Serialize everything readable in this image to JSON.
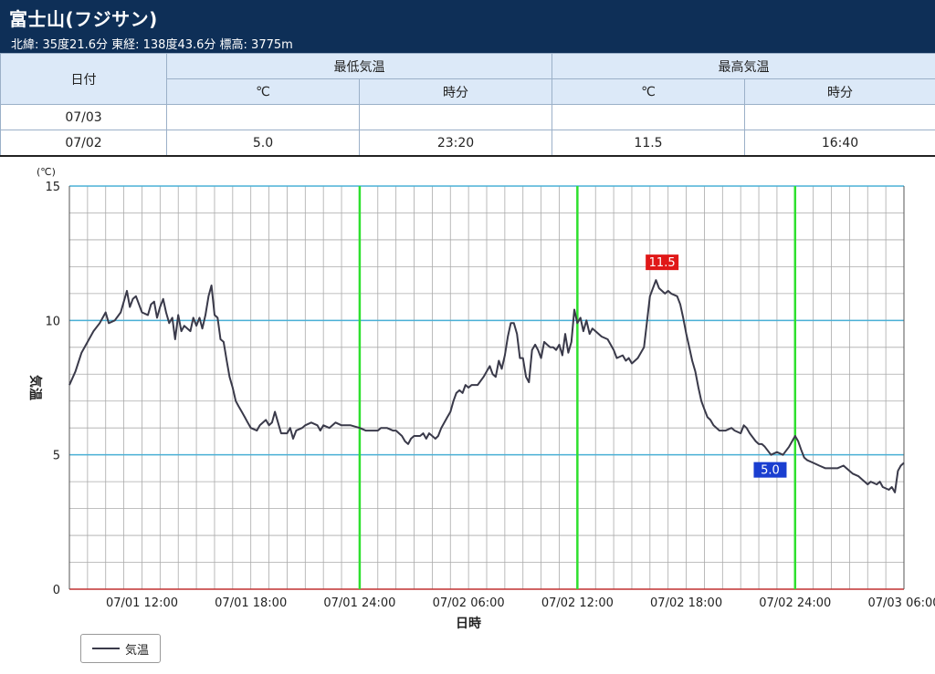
{
  "header": {
    "title": "富士山(フジサン)",
    "subtitle": "北緯: 35度21.6分 東経: 138度43.6分 標高: 3775m"
  },
  "table": {
    "date_header": "日付",
    "min_header": "最低気温",
    "max_header": "最高気温",
    "unit_c": "℃",
    "unit_time": "時分",
    "rows": [
      {
        "date": "07/03",
        "min_c": "",
        "min_time": "",
        "max_c": "",
        "max_time": ""
      },
      {
        "date": "07/02",
        "min_c": "5.0",
        "min_time": "23:20",
        "max_c": "11.5",
        "max_time": "16:40"
      }
    ]
  },
  "legend": {
    "label": "気温"
  },
  "chart_data": {
    "type": "line",
    "xlabel": "日時",
    "ylabel": "気温",
    "yunit": "(℃)",
    "ylim": [
      0,
      15
    ],
    "yticks": [
      0,
      5,
      10,
      15
    ],
    "xrange_hours": [
      8,
      54
    ],
    "xticks": [
      {
        "h": 12,
        "label": "07/01 12:00"
      },
      {
        "h": 18,
        "label": "07/01 18:00"
      },
      {
        "h": 24,
        "label": "07/01 24:00"
      },
      {
        "h": 30,
        "label": "07/02 06:00"
      },
      {
        "h": 36,
        "label": "07/02 12:00"
      },
      {
        "h": 42,
        "label": "07/02 18:00"
      },
      {
        "h": 48,
        "label": "07/02 24:00"
      },
      {
        "h": 54,
        "label": "07/03 06:00"
      }
    ],
    "grid": true,
    "colors": {
      "line": "#3a3a4a",
      "day_line": "#2ee02e",
      "major_grid": "#4ab0d6",
      "minor_grid": "#aaaaaa",
      "zero_line": "#c03030",
      "max_badge": "#e01818",
      "min_badge": "#1a3ed0"
    },
    "annotations": [
      {
        "label": "11.5",
        "kind": "max",
        "h": 40.67,
        "value": 11.5
      },
      {
        "label": "5.0",
        "kind": "min",
        "h": 47.33,
        "value": 5.0
      }
    ],
    "series": [
      {
        "name": "気温",
        "points": [
          [
            8.0,
            7.6
          ],
          [
            8.33,
            8.1
          ],
          [
            8.67,
            8.8
          ],
          [
            9.0,
            9.2
          ],
          [
            9.33,
            9.6
          ],
          [
            9.67,
            9.9
          ],
          [
            10.0,
            10.3
          ],
          [
            10.17,
            9.9
          ],
          [
            10.5,
            10.0
          ],
          [
            10.83,
            10.3
          ],
          [
            11.0,
            10.7
          ],
          [
            11.17,
            11.1
          ],
          [
            11.33,
            10.5
          ],
          [
            11.5,
            10.8
          ],
          [
            11.67,
            10.9
          ],
          [
            12.0,
            10.3
          ],
          [
            12.33,
            10.2
          ],
          [
            12.5,
            10.6
          ],
          [
            12.67,
            10.7
          ],
          [
            12.83,
            10.1
          ],
          [
            13.0,
            10.5
          ],
          [
            13.17,
            10.8
          ],
          [
            13.33,
            10.3
          ],
          [
            13.5,
            9.9
          ],
          [
            13.67,
            10.1
          ],
          [
            13.83,
            9.3
          ],
          [
            14.0,
            10.2
          ],
          [
            14.17,
            9.6
          ],
          [
            14.33,
            9.8
          ],
          [
            14.5,
            9.7
          ],
          [
            14.67,
            9.6
          ],
          [
            14.83,
            10.1
          ],
          [
            15.0,
            9.8
          ],
          [
            15.17,
            10.1
          ],
          [
            15.33,
            9.7
          ],
          [
            15.5,
            10.2
          ],
          [
            15.67,
            10.9
          ],
          [
            15.83,
            11.3
          ],
          [
            16.0,
            10.2
          ],
          [
            16.17,
            10.1
          ],
          [
            16.33,
            9.3
          ],
          [
            16.5,
            9.2
          ],
          [
            16.67,
            8.5
          ],
          [
            16.83,
            7.9
          ],
          [
            17.0,
            7.5
          ],
          [
            17.17,
            7.0
          ],
          [
            17.33,
            6.8
          ],
          [
            17.5,
            6.6
          ],
          [
            17.67,
            6.4
          ],
          [
            17.83,
            6.2
          ],
          [
            18.0,
            6.0
          ],
          [
            18.33,
            5.9
          ],
          [
            18.5,
            6.1
          ],
          [
            18.83,
            6.3
          ],
          [
            19.0,
            6.1
          ],
          [
            19.17,
            6.2
          ],
          [
            19.33,
            6.6
          ],
          [
            19.5,
            6.2
          ],
          [
            19.67,
            5.8
          ],
          [
            20.0,
            5.8
          ],
          [
            20.17,
            6.0
          ],
          [
            20.33,
            5.6
          ],
          [
            20.5,
            5.9
          ],
          [
            20.83,
            6.0
          ],
          [
            21.0,
            6.1
          ],
          [
            21.33,
            6.2
          ],
          [
            21.67,
            6.1
          ],
          [
            21.83,
            5.9
          ],
          [
            22.0,
            6.1
          ],
          [
            22.33,
            6.0
          ],
          [
            22.67,
            6.2
          ],
          [
            23.0,
            6.1
          ],
          [
            23.5,
            6.1
          ],
          [
            24.0,
            6.0
          ],
          [
            24.33,
            5.9
          ],
          [
            24.67,
            5.9
          ],
          [
            25.0,
            5.9
          ],
          [
            25.17,
            6.0
          ],
          [
            25.5,
            6.0
          ],
          [
            25.83,
            5.9
          ],
          [
            26.0,
            5.9
          ],
          [
            26.33,
            5.7
          ],
          [
            26.5,
            5.5
          ],
          [
            26.67,
            5.4
          ],
          [
            26.83,
            5.6
          ],
          [
            27.0,
            5.7
          ],
          [
            27.33,
            5.7
          ],
          [
            27.5,
            5.8
          ],
          [
            27.67,
            5.6
          ],
          [
            27.83,
            5.8
          ],
          [
            28.0,
            5.7
          ],
          [
            28.17,
            5.6
          ],
          [
            28.33,
            5.7
          ],
          [
            28.5,
            6.0
          ],
          [
            28.83,
            6.4
          ],
          [
            29.0,
            6.6
          ],
          [
            29.17,
            7.0
          ],
          [
            29.33,
            7.3
          ],
          [
            29.5,
            7.4
          ],
          [
            29.67,
            7.3
          ],
          [
            29.83,
            7.6
          ],
          [
            30.0,
            7.5
          ],
          [
            30.17,
            7.6
          ],
          [
            30.5,
            7.6
          ],
          [
            30.83,
            7.9
          ],
          [
            31.0,
            8.1
          ],
          [
            31.17,
            8.3
          ],
          [
            31.33,
            8.0
          ],
          [
            31.5,
            7.9
          ],
          [
            31.67,
            8.5
          ],
          [
            31.83,
            8.2
          ],
          [
            32.0,
            8.7
          ],
          [
            32.17,
            9.4
          ],
          [
            32.33,
            9.9
          ],
          [
            32.5,
            9.9
          ],
          [
            32.67,
            9.5
          ],
          [
            32.83,
            8.6
          ],
          [
            33.0,
            8.6
          ],
          [
            33.17,
            7.9
          ],
          [
            33.33,
            7.7
          ],
          [
            33.5,
            8.9
          ],
          [
            33.67,
            9.1
          ],
          [
            33.83,
            8.9
          ],
          [
            34.0,
            8.6
          ],
          [
            34.17,
            9.2
          ],
          [
            34.33,
            9.1
          ],
          [
            34.5,
            9.0
          ],
          [
            34.67,
            9.0
          ],
          [
            34.83,
            8.9
          ],
          [
            35.0,
            9.1
          ],
          [
            35.17,
            8.7
          ],
          [
            35.33,
            9.5
          ],
          [
            35.5,
            8.8
          ],
          [
            35.67,
            9.2
          ],
          [
            35.83,
            10.4
          ],
          [
            36.0,
            9.9
          ],
          [
            36.17,
            10.1
          ],
          [
            36.33,
            9.6
          ],
          [
            36.5,
            10.0
          ],
          [
            36.67,
            9.5
          ],
          [
            36.83,
            9.7
          ],
          [
            37.0,
            9.6
          ],
          [
            37.33,
            9.4
          ],
          [
            37.67,
            9.3
          ],
          [
            38.0,
            8.9
          ],
          [
            38.17,
            8.6
          ],
          [
            38.5,
            8.7
          ],
          [
            38.67,
            8.5
          ],
          [
            38.83,
            8.6
          ],
          [
            39.0,
            8.4
          ],
          [
            39.33,
            8.6
          ],
          [
            39.67,
            9.0
          ],
          [
            39.83,
            9.9
          ],
          [
            40.0,
            10.9
          ],
          [
            40.33,
            11.5
          ],
          [
            40.5,
            11.2
          ],
          [
            40.83,
            11.0
          ],
          [
            41.0,
            11.1
          ],
          [
            41.17,
            11.0
          ],
          [
            41.5,
            10.9
          ],
          [
            41.67,
            10.6
          ],
          [
            41.83,
            10.1
          ],
          [
            42.0,
            9.5
          ],
          [
            42.17,
            9.0
          ],
          [
            42.33,
            8.5
          ],
          [
            42.5,
            8.1
          ],
          [
            42.67,
            7.5
          ],
          [
            42.83,
            7.0
          ],
          [
            43.0,
            6.7
          ],
          [
            43.17,
            6.4
          ],
          [
            43.33,
            6.3
          ],
          [
            43.5,
            6.1
          ],
          [
            43.67,
            6.0
          ],
          [
            43.83,
            5.9
          ],
          [
            44.17,
            5.9
          ],
          [
            44.5,
            6.0
          ],
          [
            44.67,
            5.9
          ],
          [
            45.0,
            5.8
          ],
          [
            45.17,
            6.1
          ],
          [
            45.33,
            6.0
          ],
          [
            45.5,
            5.8
          ],
          [
            45.83,
            5.5
          ],
          [
            46.0,
            5.4
          ],
          [
            46.17,
            5.4
          ],
          [
            46.33,
            5.3
          ],
          [
            46.67,
            5.0
          ],
          [
            47.0,
            5.1
          ],
          [
            47.33,
            5.0
          ],
          [
            47.67,
            5.3
          ],
          [
            48.0,
            5.7
          ],
          [
            48.17,
            5.5
          ],
          [
            48.33,
            5.2
          ],
          [
            48.5,
            4.9
          ],
          [
            48.67,
            4.8
          ],
          [
            49.0,
            4.7
          ],
          [
            49.33,
            4.6
          ],
          [
            49.67,
            4.5
          ],
          [
            50.0,
            4.5
          ],
          [
            50.33,
            4.5
          ],
          [
            50.67,
            4.6
          ],
          [
            50.83,
            4.5
          ],
          [
            51.17,
            4.3
          ],
          [
            51.5,
            4.2
          ],
          [
            51.83,
            4.0
          ],
          [
            52.0,
            3.9
          ],
          [
            52.17,
            4.0
          ],
          [
            52.5,
            3.9
          ],
          [
            52.67,
            4.0
          ],
          [
            52.83,
            3.8
          ],
          [
            53.17,
            3.7
          ],
          [
            53.33,
            3.8
          ],
          [
            53.5,
            3.6
          ],
          [
            53.67,
            4.4
          ],
          [
            53.83,
            4.6
          ],
          [
            54.0,
            4.7
          ]
        ]
      }
    ]
  }
}
